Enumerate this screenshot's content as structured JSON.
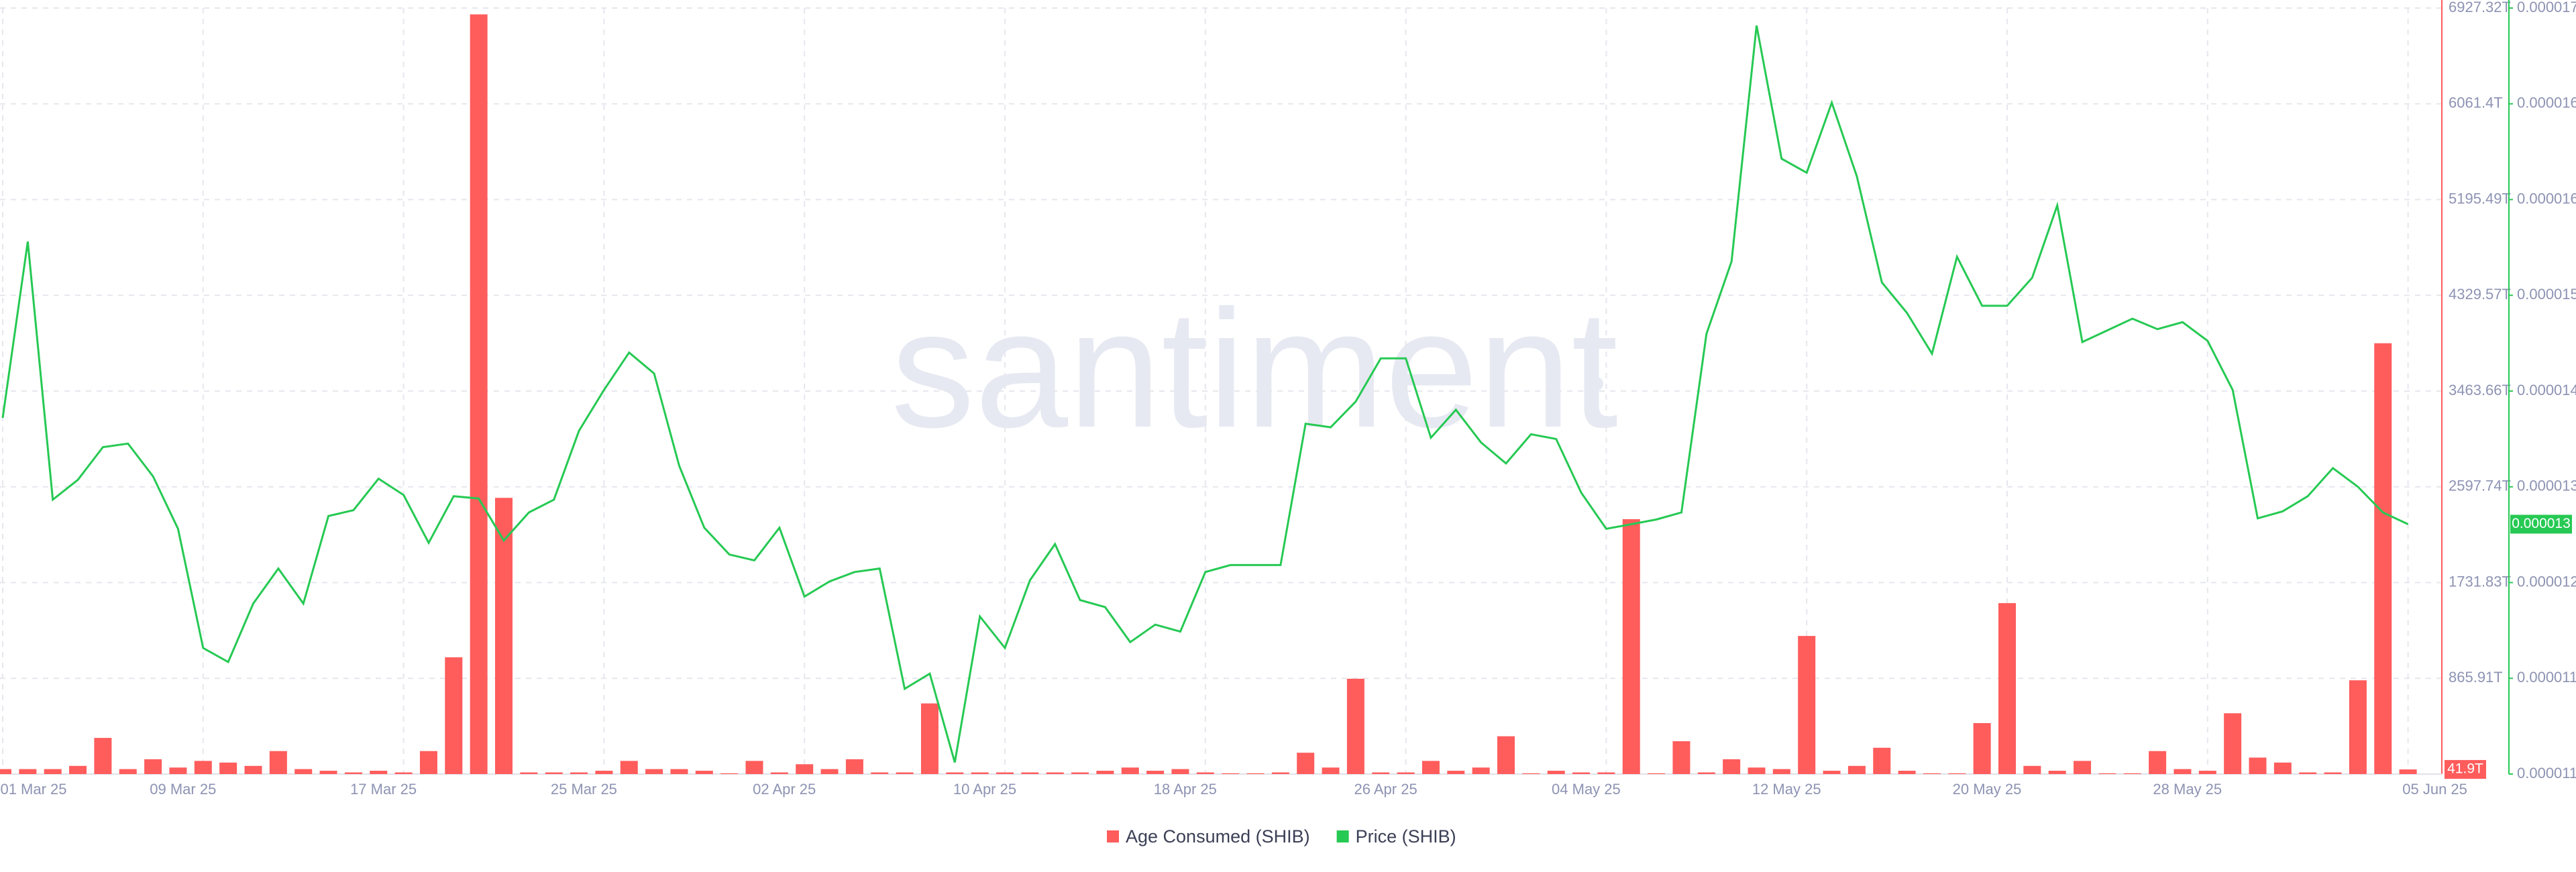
{
  "chart_data": {
    "type": "combo",
    "watermark": "santiment",
    "categories": [
      "01 Mar 25",
      null,
      null,
      null,
      null,
      null,
      null,
      null,
      "09 Mar 25",
      null,
      null,
      null,
      null,
      null,
      null,
      null,
      "17 Mar 25",
      null,
      null,
      null,
      null,
      null,
      null,
      null,
      "25 Mar 25",
      null,
      null,
      null,
      null,
      null,
      null,
      null,
      "02 Apr 25",
      null,
      null,
      null,
      null,
      null,
      null,
      null,
      "10 Apr 25",
      null,
      null,
      null,
      null,
      null,
      null,
      null,
      "18 Apr 25",
      null,
      null,
      null,
      null,
      null,
      null,
      null,
      "26 Apr 25",
      null,
      null,
      null,
      null,
      null,
      null,
      null,
      "04 May 25",
      null,
      null,
      null,
      null,
      null,
      null,
      null,
      "12 May 25",
      null,
      null,
      null,
      null,
      null,
      null,
      null,
      "20 May 25",
      null,
      null,
      null,
      null,
      null,
      null,
      null,
      "28 May 25",
      null,
      null,
      null,
      null,
      null,
      null,
      null,
      "05 Jun 25"
    ],
    "ylim": [
      0,
      6927.32
    ],
    "yticks": [
      {
        "value": 865.91,
        "label": "865.91T"
      },
      {
        "value": 1731.83,
        "label": "1731.83T"
      },
      {
        "value": 2597.74,
        "label": "2597.74T"
      },
      {
        "value": 3463.66,
        "label": "3463.66T"
      },
      {
        "value": 4329.57,
        "label": "4329.57T"
      },
      {
        "value": 5195.49,
        "label": "5195.49T"
      },
      {
        "value": 6061.4,
        "label": "6061.4T"
      },
      {
        "value": 6927.32,
        "label": "6927.32T"
      }
    ],
    "y2lim": [
      1.06e-05,
      1.716e-05
    ],
    "y2ticks": [
      {
        "value": 1.06e-05,
        "label": "0.000011"
      },
      {
        "value": 1.142e-05,
        "label": "0.000011"
      },
      {
        "value": 1.224e-05,
        "label": "0.000012"
      },
      {
        "value": 1.306e-05,
        "label": "0.000013"
      },
      {
        "value": 1.388e-05,
        "label": "0.000014"
      },
      {
        "value": 1.47e-05,
        "label": "0.000015"
      },
      {
        "value": 1.552e-05,
        "label": "0.000016"
      },
      {
        "value": 1.634e-05,
        "label": "0.000016"
      },
      {
        "value": 1.716e-05,
        "label": "0.000017"
      }
    ],
    "grid": true,
    "legend": "bottom",
    "series": [
      {
        "name": "Age Consumed (SHIB)",
        "type": "bar",
        "color": "#ff5c5c",
        "values": [
          45,
          45,
          45,
          74,
          327,
          45,
          134,
          59,
          119,
          104,
          74,
          208,
          45,
          30,
          15,
          30,
          15,
          208,
          1056,
          6870,
          2498,
          15,
          15,
          15,
          30,
          119,
          45,
          45,
          30,
          7,
          119,
          15,
          89,
          45,
          134,
          15,
          15,
          639,
          15,
          15,
          15,
          15,
          15,
          15,
          30,
          59,
          30,
          45,
          15,
          7,
          7,
          15,
          193,
          59,
          862,
          15,
          15,
          119,
          30,
          59,
          342,
          7,
          30,
          15,
          15,
          2305,
          7,
          297,
          15,
          134,
          59,
          45,
          1249,
          30,
          74,
          238,
          30,
          7,
          7,
          461,
          1546,
          74,
          30,
          119,
          7,
          7,
          208,
          45,
          30,
          550,
          149,
          104,
          15,
          15,
          848,
          3896,
          41.9
        ],
        "value_labels": [
          null,
          null,
          null,
          null,
          null,
          null,
          null,
          null,
          null,
          null,
          null,
          null,
          null,
          null,
          null,
          null,
          null,
          null,
          null,
          null,
          null,
          null,
          null,
          null,
          null,
          null,
          null,
          null,
          null,
          null,
          null,
          null,
          null,
          null,
          null,
          null,
          null,
          null,
          null,
          null,
          null,
          null,
          null,
          null,
          null,
          null,
          null,
          null,
          null,
          null,
          null,
          null,
          null,
          null,
          null,
          null,
          null,
          null,
          null,
          null,
          null,
          null,
          null,
          null,
          null,
          null,
          null,
          null,
          null,
          null,
          null,
          null,
          null,
          null,
          null,
          null,
          null,
          null,
          null,
          null,
          null,
          null,
          null,
          null,
          null,
          null,
          null,
          null,
          null,
          null,
          null,
          null,
          null,
          null,
          null,
          null,
          "41.9T"
        ]
      },
      {
        "name": "Price (SHIB)",
        "type": "line",
        "axis": "y2",
        "color": "#26c953",
        "values": [
          1.365e-05,
          1.516e-05,
          1.295e-05,
          1.312e-05,
          1.34e-05,
          1.343e-05,
          1.315e-05,
          1.27e-05,
          1.168e-05,
          1.156e-05,
          1.206e-05,
          1.236e-05,
          1.206e-05,
          1.281e-05,
          1.286e-05,
          1.313e-05,
          1.299e-05,
          1.258e-05,
          1.298e-05,
          1.296e-05,
          1.26e-05,
          1.284e-05,
          1.295e-05,
          1.354e-05,
          1.389e-05,
          1.421e-05,
          1.403e-05,
          1.324e-05,
          1.271e-05,
          1.248e-05,
          1.243e-05,
          1.271e-05,
          1.212e-05,
          1.225e-05,
          1.233e-05,
          1.236e-05,
          1.133e-05,
          1.146e-05,
          1.07e-05,
          1.195e-05,
          1.168e-05,
          1.226e-05,
          1.257e-05,
          1.209e-05,
          1.203e-05,
          1.173e-05,
          1.188e-05,
          1.182e-05,
          1.233e-05,
          1.239e-05,
          1.239e-05,
          1.239e-05,
          1.36e-05,
          1.357e-05,
          1.379e-05,
          1.416e-05,
          1.416e-05,
          1.348e-05,
          1.372e-05,
          1.344e-05,
          1.326e-05,
          1.351e-05,
          1.347e-05,
          1.301e-05,
          1.27e-05,
          1.274e-05,
          1.278e-05,
          1.284e-05,
          1.437e-05,
          1.499e-05,
          1.701e-05,
          1.587e-05,
          1.575e-05,
          1.635e-05,
          1.572e-05,
          1.481e-05,
          1.455e-05,
          1.42e-05,
          1.503e-05,
          1.461e-05,
          1.461e-05,
          1.485e-05,
          1.547e-05,
          1.43e-05,
          1.44e-05,
          1.45e-05,
          1.441e-05,
          1.447e-05,
          1.431e-05,
          1.389e-05,
          1.279e-05,
          1.285e-05,
          1.298e-05,
          1.322e-05,
          1.306e-05,
          1.284e-05,
          1.274e-05
        ],
        "value_labels": [
          null,
          null,
          null,
          null,
          null,
          null,
          null,
          null,
          null,
          null,
          null,
          null,
          null,
          null,
          null,
          null,
          null,
          null,
          null,
          null,
          null,
          null,
          null,
          null,
          null,
          null,
          null,
          null,
          null,
          null,
          null,
          null,
          null,
          null,
          null,
          null,
          null,
          null,
          null,
          null,
          null,
          null,
          null,
          null,
          null,
          null,
          null,
          null,
          null,
          null,
          null,
          null,
          null,
          null,
          null,
          null,
          null,
          null,
          null,
          null,
          null,
          null,
          null,
          null,
          null,
          null,
          null,
          null,
          null,
          null,
          null,
          null,
          null,
          null,
          null,
          null,
          null,
          null,
          null,
          null,
          null,
          null,
          null,
          null,
          null,
          null,
          null,
          null,
          null,
          null,
          null,
          null,
          null,
          null,
          null,
          null,
          "0.000013"
        ]
      }
    ]
  }
}
